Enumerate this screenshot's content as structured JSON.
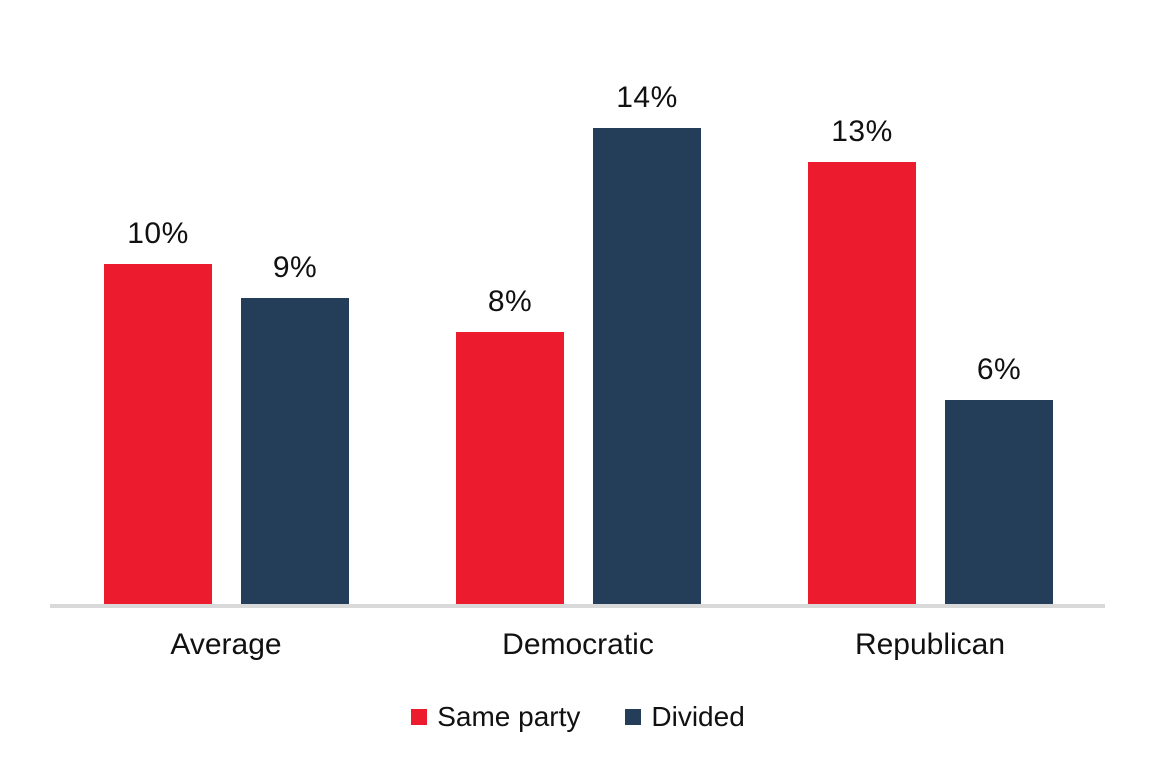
{
  "chart_data": {
    "type": "bar",
    "title": "",
    "xlabel": "",
    "ylabel": "",
    "categories": [
      "Average",
      "Democratic",
      "Republican"
    ],
    "series": [
      {
        "name": "Same party",
        "color": "#ed1b2e",
        "values": [
          10,
          8,
          13
        ]
      },
      {
        "name": "Divided",
        "color": "#243e5a",
        "values": [
          9,
          14,
          6
        ]
      }
    ],
    "value_suffix": "%",
    "data_labels": [
      [
        "10%",
        "8%",
        "13%"
      ],
      [
        "9%",
        "14%",
        "6%"
      ]
    ],
    "ylim": [
      0,
      15
    ],
    "grid": false,
    "y_axis_visible": false,
    "legend_position": "bottom",
    "axis_line_color": "#d9d9d9",
    "label_text_color": "#111111",
    "background_color": "#ffffff"
  }
}
